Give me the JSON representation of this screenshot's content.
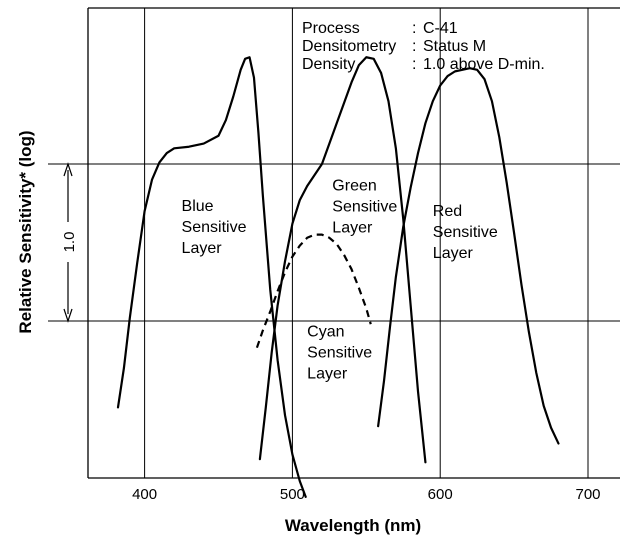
{
  "chart_data": {
    "type": "line",
    "title": "",
    "xlabel": "Wavelength (nm)",
    "ylabel": "Relative Sensitivity* (log)",
    "xlim": [
      380,
      720
    ],
    "ylim": [
      0,
      3
    ],
    "x_ticks": [
      400,
      500,
      600,
      700
    ],
    "x_tick_labels": [
      "400",
      "500",
      "600",
      "700"
    ],
    "grid": true,
    "legend": "none",
    "y_scale_marker": {
      "label": "1.0",
      "from": 1,
      "to": 2
    },
    "info_box": [
      {
        "key": "Process",
        "value": "C-41"
      },
      {
        "key": "Densitometry",
        "value": "Status M"
      },
      {
        "key": "Density",
        "value": "1.0 above D-min."
      }
    ],
    "series": [
      {
        "name": "Blue Sensitive Layer",
        "label_lines": [
          "Blue",
          "Sensitive",
          "Layer"
        ],
        "label_x": 425,
        "label_y": 1.7,
        "style": "solid",
        "x": [
          382,
          386,
          390,
          395,
          400,
          405,
          410,
          415,
          420,
          430,
          440,
          450,
          455,
          460,
          465,
          468,
          471,
          474,
          477,
          480,
          485,
          490,
          495,
          500,
          505,
          509
        ],
        "y": [
          0.45,
          0.7,
          1.02,
          1.37,
          1.7,
          1.9,
          2.01,
          2.07,
          2.1,
          2.11,
          2.13,
          2.18,
          2.28,
          2.43,
          2.6,
          2.67,
          2.68,
          2.55,
          2.2,
          1.8,
          1.2,
          0.75,
          0.4,
          0.15,
          -0.02,
          -0.12
        ]
      },
      {
        "name": "Cyan Sensitive Layer",
        "label_lines": [
          "Cyan",
          "Sensitive",
          "Layer"
        ],
        "label_x": 510,
        "label_y": 0.9,
        "style": "dashed",
        "x": [
          476,
          480,
          485,
          490,
          495,
          500,
          505,
          510,
          515,
          520,
          525,
          530,
          535,
          540,
          545,
          550,
          553
        ],
        "y": [
          0.83,
          0.94,
          1.06,
          1.19,
          1.31,
          1.41,
          1.48,
          1.53,
          1.55,
          1.55,
          1.53,
          1.49,
          1.42,
          1.33,
          1.21,
          1.08,
          0.98
        ]
      },
      {
        "name": "Green Sensitive Layer",
        "label_lines": [
          "Green",
          "Sensitive",
          "Layer"
        ],
        "label_x": 527,
        "label_y": 1.83,
        "style": "solid",
        "x": [
          478,
          482,
          486,
          490,
          495,
          500,
          505,
          510,
          515,
          520,
          525,
          530,
          535,
          540,
          545,
          550,
          555,
          560,
          565,
          570,
          575,
          580,
          585,
          590
        ],
        "y": [
          0.12,
          0.45,
          0.8,
          1.1,
          1.38,
          1.62,
          1.77,
          1.86,
          1.93,
          2.0,
          2.13,
          2.26,
          2.39,
          2.52,
          2.63,
          2.68,
          2.67,
          2.58,
          2.4,
          2.1,
          1.65,
          1.1,
          0.55,
          0.1
        ]
      },
      {
        "name": "Red Sensitive Layer",
        "label_lines": [
          "Red",
          "Sensitive",
          "Layer"
        ],
        "label_x": 595,
        "label_y": 1.67,
        "style": "solid",
        "x": [
          558,
          562,
          566,
          570,
          575,
          580,
          585,
          590,
          595,
          600,
          605,
          610,
          615,
          620,
          625,
          630,
          635,
          640,
          645,
          650,
          655,
          660,
          665,
          670,
          675,
          680
        ],
        "y": [
          0.33,
          0.62,
          0.96,
          1.28,
          1.6,
          1.85,
          2.07,
          2.26,
          2.4,
          2.5,
          2.56,
          2.59,
          2.6,
          2.61,
          2.6,
          2.54,
          2.4,
          2.17,
          1.88,
          1.56,
          1.23,
          0.93,
          0.67,
          0.46,
          0.32,
          0.22
        ]
      }
    ]
  }
}
